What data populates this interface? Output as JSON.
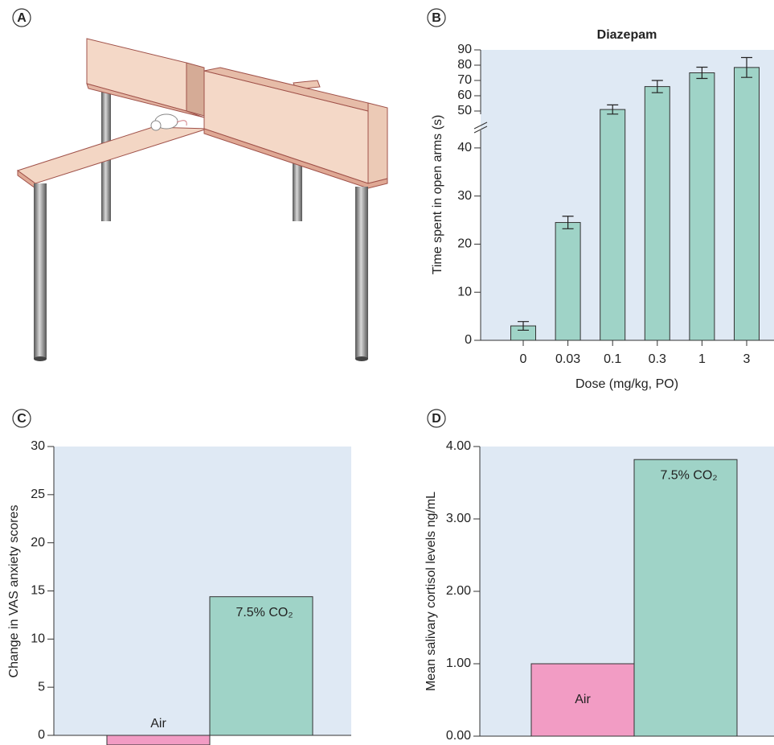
{
  "panel_labels": [
    "A",
    "B",
    "C",
    "D"
  ],
  "chart_data": [
    {
      "type": "bar",
      "title": "Diazepam",
      "x_label": "Dose (mg/kg, PO)",
      "y_label": "Time spent in open arms (s)",
      "categories": [
        "0",
        "0.03",
        "0.1",
        "0.3",
        "1",
        "3"
      ],
      "values": [
        3,
        24.5,
        51,
        66,
        75,
        78.5
      ],
      "errors": [
        0.9,
        1.3,
        3,
        4,
        3.7,
        6.5
      ],
      "color": "#9fd3c7",
      "ylim": [
        0,
        90
      ],
      "y_break": [
        45,
        50
      ],
      "yticks": [
        0,
        10,
        20,
        30,
        40,
        50,
        60,
        70,
        80,
        90
      ]
    },
    {
      "type": "bar",
      "y_label": "Change in VAS anxiety scores",
      "categories": [
        "Air",
        "7.5% CO₂"
      ],
      "values": [
        -1,
        14.4
      ],
      "colors": [
        "#f29cc4",
        "#9fd3c7"
      ],
      "ylim": [
        0,
        30
      ],
      "yticks": [
        0,
        5,
        10,
        15,
        20,
        25,
        30
      ]
    },
    {
      "type": "bar",
      "y_label": "Mean salivary cortisol levels ng/mL",
      "categories": [
        "Air",
        "7.5% CO₂"
      ],
      "values": [
        1.0,
        3.82
      ],
      "colors": [
        "#f29cc4",
        "#9fd3c7"
      ],
      "ylim": [
        0,
        4
      ],
      "yticks": [
        {
          "value": 0,
          "label": "0.00"
        },
        {
          "value": 1,
          "label": "1.00"
        },
        {
          "value": 2,
          "label": "2.00"
        },
        {
          "value": 3,
          "label": "3.00"
        },
        {
          "value": 4,
          "label": "4.00"
        }
      ]
    }
  ]
}
